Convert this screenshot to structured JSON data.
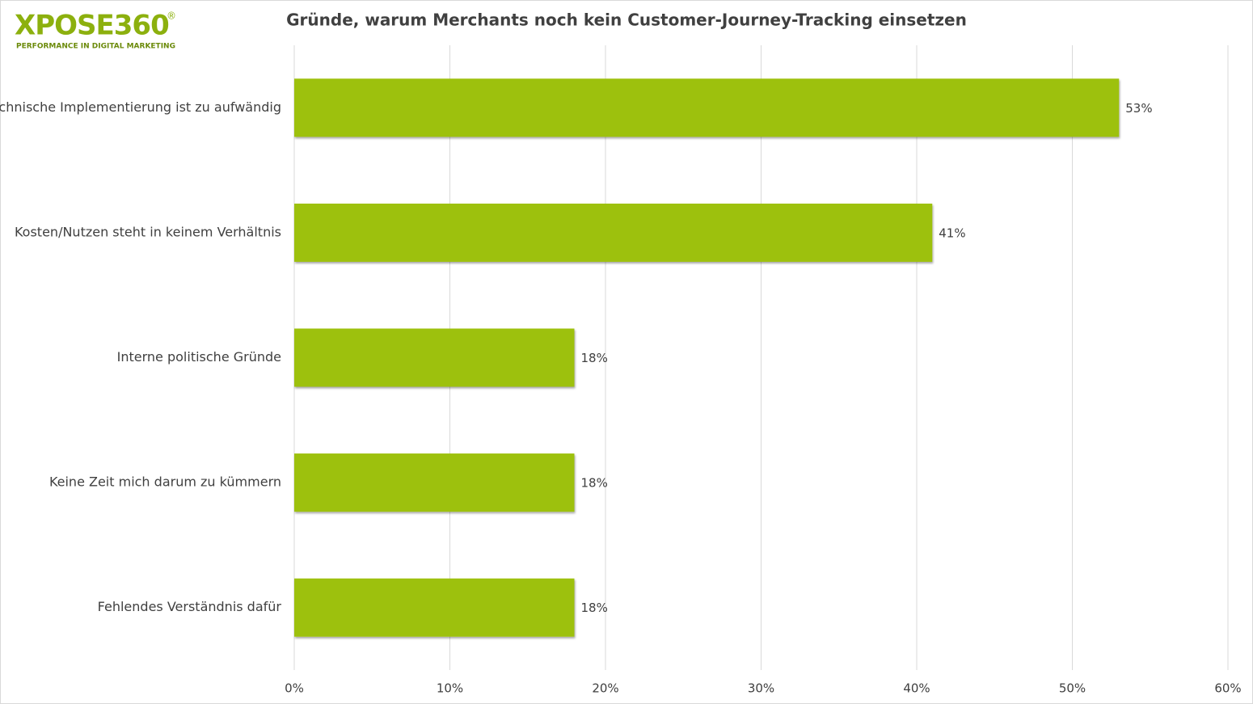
{
  "logo": {
    "name": "XPOSE360",
    "mark": "®",
    "tagline": "PERFORMANCE IN DIGITAL MARKETING"
  },
  "chart_data": {
    "type": "hbar",
    "title": "Gründe, warum Merchants noch kein Customer-Journey-Tracking einsetzen",
    "categories": [
      "technische Implementierung ist zu aufwändig",
      "Kosten/Nutzen steht in keinem Verhältnis",
      "Interne politische Gründe",
      "Keine Zeit mich darum zu kümmern",
      "Fehlendes Verständnis dafür"
    ],
    "values": [
      53,
      41,
      18,
      18,
      18
    ],
    "value_labels": [
      "53%",
      "41%",
      "18%",
      "18%",
      "18%"
    ],
    "color": "#9dc107",
    "xlim": [
      0,
      60
    ],
    "xticks": [
      {
        "value": 0,
        "label": "0%"
      },
      {
        "value": 10,
        "label": "10%"
      },
      {
        "value": 20,
        "label": "20%"
      },
      {
        "value": 30,
        "label": "30%"
      },
      {
        "value": 40,
        "label": "40%"
      },
      {
        "value": 50,
        "label": "50%"
      },
      {
        "value": 60,
        "label": "60%"
      }
    ],
    "grid": true
  }
}
